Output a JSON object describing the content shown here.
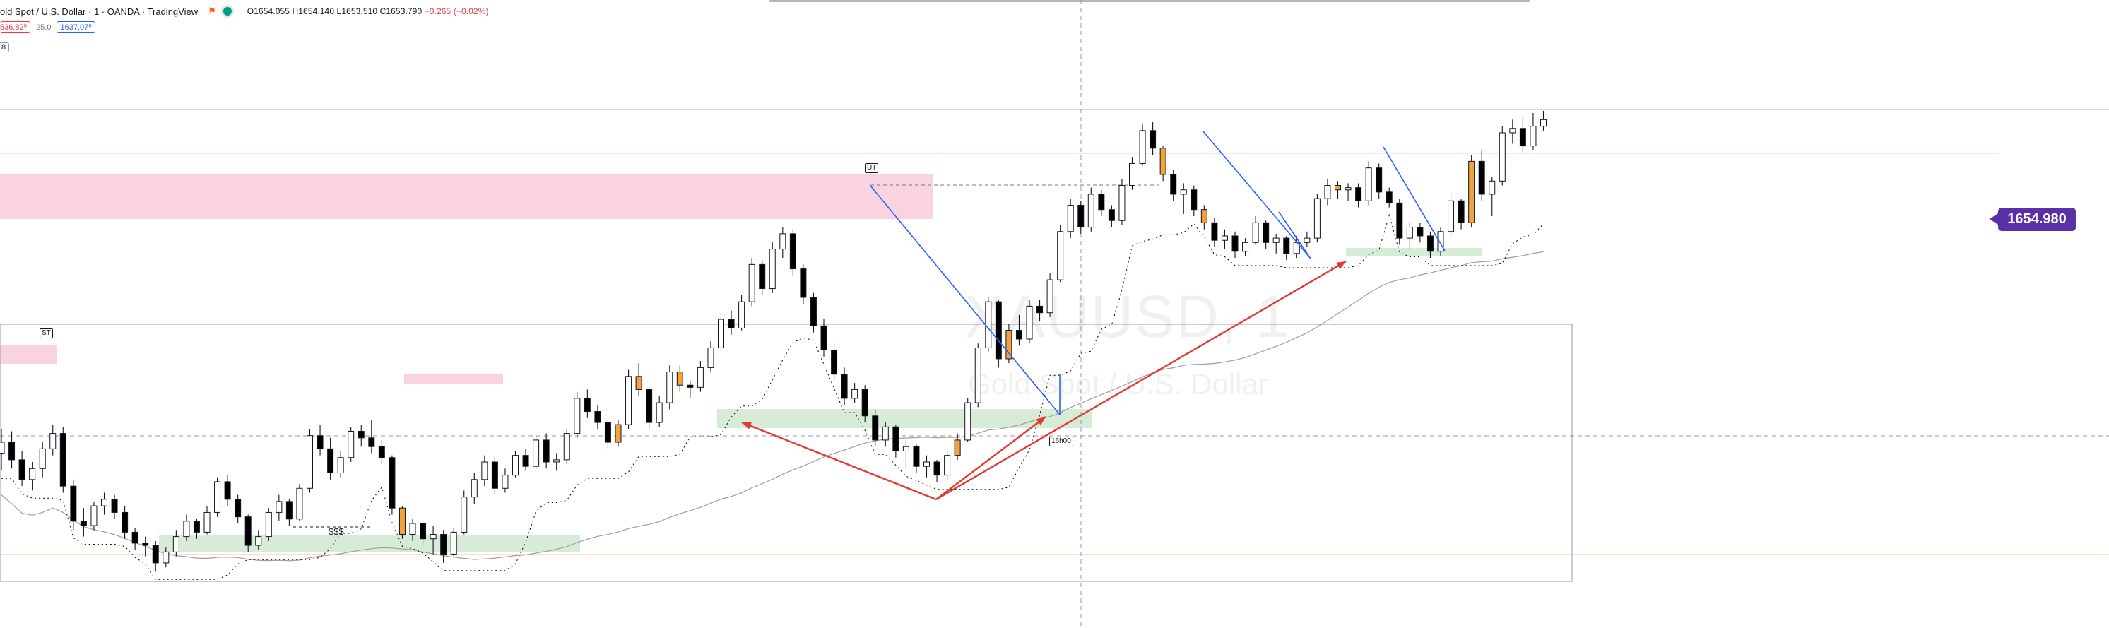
{
  "header": {
    "symbol": "old Spot / U.S. Dollar · 1 · OANDA · TradingView",
    "ohlc_o": "O1654.055",
    "ohlc_h": "H1654.140",
    "ohlc_l": "L1653.510",
    "ohlc_c": "C1653.790",
    "change": "−0.265 (−0.02%)"
  },
  "trade": {
    "sell": "536.82⁰",
    "spread": "25.0",
    "buy": "1637.07⁰"
  },
  "indicator_count": "8",
  "watermark": {
    "symbol": "XAUUSD, 1",
    "description": "Gold Spot / U.S. Dollar"
  },
  "price_tag": "1654.980",
  "annotations": {
    "st": "ST",
    "ut": "UT",
    "session": "16h00",
    "liquidity": "$$$"
  },
  "colors": {
    "up_candle": "#ffffff",
    "down_candle": "#000000",
    "inside_candle": "#f2a13c",
    "supply_zone": "#f8bbd0",
    "demand_zone": "#c8e6c9",
    "trend_line": "#2962ff",
    "arrow": "#e53935",
    "price_line": "#2962ff",
    "sma": "#9e9e9e",
    "trail_stop": "#000000"
  },
  "chart_data": {
    "type": "candlestick",
    "title": "",
    "y_range": [
      1636.2,
      1656.8
    ],
    "key_level": 1654.98,
    "candles": [
      [
        1641.3,
        1642.4,
        1640.5,
        1641.8
      ],
      [
        1641.8,
        1642.3,
        1640.6,
        1641.0
      ],
      [
        1641.0,
        1641.4,
        1639.8,
        1640.1
      ],
      [
        1640.1,
        1640.9,
        1639.6,
        1640.6
      ],
      [
        1640.6,
        1641.8,
        1640.2,
        1641.5
      ],
      [
        1641.5,
        1642.6,
        1641.2,
        1642.2
      ],
      [
        1642.2,
        1642.5,
        1639.5,
        1639.8
      ],
      [
        1639.8,
        1640.1,
        1637.8,
        1638.2
      ],
      [
        1638.2,
        1638.8,
        1637.5,
        1638.0
      ],
      [
        1638.0,
        1639.1,
        1637.8,
        1638.9
      ],
      [
        1638.9,
        1639.5,
        1638.5,
        1639.2
      ],
      [
        1639.2,
        1639.4,
        1638.3,
        1638.6
      ],
      [
        1638.6,
        1638.9,
        1637.4,
        1637.7
      ],
      [
        1637.7,
        1637.9,
        1636.9,
        1637.2
      ],
      [
        1637.2,
        1637.5,
        1636.6,
        1637.1
      ],
      [
        1637.1,
        1637.3,
        1635.9,
        1636.3
      ],
      [
        1636.3,
        1637.0,
        1636.1,
        1636.8
      ],
      [
        1636.8,
        1637.8,
        1636.6,
        1637.5
      ],
      [
        1637.5,
        1638.5,
        1637.3,
        1638.2
      ],
      [
        1638.2,
        1638.3,
        1637.4,
        1637.7
      ],
      [
        1637.7,
        1638.9,
        1637.6,
        1638.6
      ],
      [
        1638.6,
        1640.2,
        1638.4,
        1640.0
      ],
      [
        1640.0,
        1640.3,
        1638.9,
        1639.2
      ],
      [
        1639.2,
        1639.4,
        1638.1,
        1638.4
      ],
      [
        1638.4,
        1638.5,
        1636.8,
        1637.1
      ],
      [
        1637.1,
        1637.8,
        1636.9,
        1637.5
      ],
      [
        1637.5,
        1638.8,
        1637.3,
        1638.6
      ],
      [
        1638.6,
        1639.4,
        1638.2,
        1639.1
      ],
      [
        1639.1,
        1639.2,
        1638.0,
        1638.3
      ],
      [
        1638.3,
        1639.9,
        1638.2,
        1639.7
      ],
      [
        1639.7,
        1642.4,
        1639.5,
        1642.1
      ],
      [
        1642.1,
        1642.6,
        1641.2,
        1641.5
      ],
      [
        1641.5,
        1642.0,
        1640.1,
        1640.4
      ],
      [
        1640.4,
        1641.4,
        1640.2,
        1641.1
      ],
      [
        1641.1,
        1642.5,
        1640.9,
        1642.3
      ],
      [
        1642.3,
        1642.6,
        1641.6,
        1642.0
      ],
      [
        1642.0,
        1642.8,
        1641.3,
        1641.6
      ],
      [
        1641.6,
        1641.9,
        1640.8,
        1641.1
      ],
      [
        1641.1,
        1641.2,
        1638.5,
        1638.8
      ],
      [
        1638.8,
        1638.9,
        1637.4,
        1637.6
      ],
      [
        1637.6,
        1638.3,
        1637.3,
        1638.1
      ],
      [
        1638.1,
        1638.2,
        1637.1,
        1637.4
      ],
      [
        1637.4,
        1638.0,
        1636.7,
        1637.6
      ],
      [
        1637.6,
        1637.8,
        1636.3,
        1636.7
      ],
      [
        1636.7,
        1637.9,
        1636.6,
        1637.7
      ],
      [
        1637.7,
        1639.6,
        1637.6,
        1639.3
      ],
      [
        1639.3,
        1640.4,
        1639.0,
        1640.1
      ],
      [
        1640.1,
        1641.2,
        1639.8,
        1640.9
      ],
      [
        1640.9,
        1641.2,
        1639.4,
        1639.7
      ],
      [
        1639.7,
        1640.6,
        1639.5,
        1640.3
      ],
      [
        1640.3,
        1641.4,
        1640.2,
        1641.2
      ],
      [
        1641.2,
        1641.5,
        1640.5,
        1640.7
      ],
      [
        1640.7,
        1642.1,
        1640.6,
        1641.9
      ],
      [
        1641.9,
        1642.2,
        1640.6,
        1640.9
      ],
      [
        1640.9,
        1641.3,
        1640.5,
        1641.0
      ],
      [
        1641.0,
        1642.4,
        1640.8,
        1642.2
      ],
      [
        1642.2,
        1644.1,
        1642.0,
        1643.8
      ],
      [
        1643.8,
        1644.2,
        1642.9,
        1643.2
      ],
      [
        1643.2,
        1643.5,
        1642.4,
        1642.7
      ],
      [
        1642.7,
        1642.8,
        1641.5,
        1641.8
      ],
      [
        1641.8,
        1642.8,
        1641.6,
        1642.6
      ],
      [
        1642.6,
        1645.1,
        1642.4,
        1644.8
      ],
      [
        1644.8,
        1645.4,
        1643.9,
        1644.2
      ],
      [
        1644.2,
        1644.3,
        1642.4,
        1642.7
      ],
      [
        1642.7,
        1643.9,
        1642.5,
        1643.6
      ],
      [
        1643.6,
        1645.3,
        1643.3,
        1645.0
      ],
      [
        1645.0,
        1645.3,
        1644.1,
        1644.4
      ],
      [
        1644.4,
        1644.6,
        1643.8,
        1644.3
      ],
      [
        1644.3,
        1645.5,
        1644.1,
        1645.2
      ],
      [
        1645.2,
        1646.4,
        1645.0,
        1646.1
      ],
      [
        1646.1,
        1647.7,
        1645.9,
        1647.4
      ],
      [
        1647.4,
        1647.8,
        1646.7,
        1647.0
      ],
      [
        1647.0,
        1648.5,
        1646.9,
        1648.2
      ],
      [
        1648.2,
        1650.2,
        1648.0,
        1649.9
      ],
      [
        1649.9,
        1650.1,
        1648.5,
        1648.8
      ],
      [
        1648.8,
        1650.9,
        1648.6,
        1650.6
      ],
      [
        1650.6,
        1651.6,
        1650.2,
        1651.3
      ],
      [
        1651.3,
        1651.5,
        1649.4,
        1649.7
      ],
      [
        1649.7,
        1649.9,
        1648.1,
        1648.4
      ],
      [
        1648.4,
        1648.6,
        1646.8,
        1647.1
      ],
      [
        1647.1,
        1647.4,
        1645.7,
        1646.0
      ],
      [
        1646.0,
        1646.3,
        1644.6,
        1644.9
      ],
      [
        1644.9,
        1645.2,
        1643.5,
        1643.8
      ],
      [
        1643.8,
        1644.5,
        1643.6,
        1644.2
      ],
      [
        1644.2,
        1644.4,
        1642.7,
        1643.0
      ],
      [
        1643.0,
        1643.3,
        1641.6,
        1641.9
      ],
      [
        1641.9,
        1642.7,
        1641.6,
        1642.5
      ],
      [
        1642.5,
        1642.6,
        1641.1,
        1641.4
      ],
      [
        1641.4,
        1641.9,
        1640.6,
        1641.6
      ],
      [
        1641.6,
        1641.7,
        1640.4,
        1640.7
      ],
      [
        1640.7,
        1641.2,
        1640.2,
        1640.9
      ],
      [
        1640.9,
        1641.0,
        1640.0,
        1640.3
      ],
      [
        1640.3,
        1641.4,
        1640.1,
        1641.2
      ],
      [
        1641.2,
        1642.2,
        1641.0,
        1641.9
      ],
      [
        1641.9,
        1643.8,
        1641.8,
        1643.6
      ],
      [
        1643.6,
        1646.3,
        1643.4,
        1646.1
      ],
      [
        1646.1,
        1648.4,
        1645.9,
        1648.2
      ],
      [
        1648.2,
        1648.3,
        1645.2,
        1645.6
      ],
      [
        1645.6,
        1647.2,
        1645.4,
        1646.9
      ],
      [
        1646.9,
        1647.6,
        1646.2,
        1646.5
      ],
      [
        1646.5,
        1648.3,
        1646.3,
        1648.0
      ],
      [
        1648.0,
        1648.3,
        1647.3,
        1647.7
      ],
      [
        1647.7,
        1649.5,
        1647.5,
        1649.2
      ],
      [
        1649.2,
        1651.7,
        1649.1,
        1651.4
      ],
      [
        1651.4,
        1652.9,
        1651.1,
        1652.6
      ],
      [
        1652.6,
        1652.8,
        1651.3,
        1651.6
      ],
      [
        1651.6,
        1653.4,
        1651.4,
        1653.1
      ],
      [
        1653.1,
        1653.3,
        1652.1,
        1652.4
      ],
      [
        1652.4,
        1652.6,
        1651.6,
        1651.9
      ],
      [
        1651.9,
        1653.8,
        1651.7,
        1653.5
      ],
      [
        1653.5,
        1654.8,
        1653.3,
        1654.5
      ],
      [
        1654.5,
        1656.3,
        1654.4,
        1656.0
      ],
      [
        1656.0,
        1656.4,
        1654.9,
        1655.2
      ],
      [
        1655.2,
        1655.3,
        1653.7,
        1654.0
      ],
      [
        1654.0,
        1654.2,
        1652.8,
        1653.1
      ],
      [
        1653.1,
        1653.6,
        1652.2,
        1653.3
      ],
      [
        1653.3,
        1653.5,
        1652.1,
        1652.4
      ],
      [
        1652.4,
        1652.6,
        1651.5,
        1651.8
      ],
      [
        1651.8,
        1652.0,
        1650.7,
        1651.0
      ],
      [
        1651.0,
        1651.5,
        1650.6,
        1651.2
      ],
      [
        1651.2,
        1651.4,
        1650.2,
        1650.5
      ],
      [
        1650.5,
        1651.1,
        1650.3,
        1650.9
      ],
      [
        1650.9,
        1652.1,
        1650.8,
        1651.8
      ],
      [
        1651.8,
        1651.9,
        1650.6,
        1650.9
      ],
      [
        1650.9,
        1651.3,
        1650.4,
        1651.1
      ],
      [
        1651.1,
        1651.2,
        1650.1,
        1650.4
      ],
      [
        1650.4,
        1651.2,
        1650.2,
        1650.9
      ],
      [
        1650.9,
        1651.4,
        1650.7,
        1651.1
      ],
      [
        1651.1,
        1653.1,
        1650.9,
        1652.9
      ],
      [
        1652.9,
        1653.8,
        1652.6,
        1653.5
      ],
      [
        1653.5,
        1653.7,
        1652.9,
        1653.3
      ],
      [
        1653.3,
        1653.6,
        1652.8,
        1653.4
      ],
      [
        1653.4,
        1653.6,
        1652.5,
        1652.8
      ],
      [
        1652.8,
        1654.6,
        1652.6,
        1654.3
      ],
      [
        1654.3,
        1654.5,
        1652.9,
        1653.2
      ],
      [
        1653.2,
        1653.4,
        1652.5,
        1652.7
      ],
      [
        1652.7,
        1652.9,
        1650.8,
        1651.1
      ],
      [
        1651.1,
        1651.8,
        1650.6,
        1651.6
      ],
      [
        1651.6,
        1651.8,
        1650.9,
        1651.2
      ],
      [
        1651.2,
        1651.4,
        1650.2,
        1650.5
      ],
      [
        1650.5,
        1651.6,
        1650.3,
        1651.4
      ],
      [
        1651.4,
        1653.1,
        1651.2,
        1652.8
      ],
      [
        1652.8,
        1652.9,
        1651.5,
        1651.8
      ],
      [
        1651.8,
        1654.9,
        1651.6,
        1654.6
      ],
      [
        1654.6,
        1655.1,
        1652.8,
        1653.1
      ],
      [
        1653.1,
        1653.9,
        1652.1,
        1653.7
      ],
      [
        1653.7,
        1656.2,
        1653.5,
        1655.9
      ],
      [
        1655.9,
        1656.5,
        1655.4,
        1656.1
      ],
      [
        1656.1,
        1656.6,
        1655.0,
        1655.3
      ],
      [
        1655.3,
        1656.8,
        1655.1,
        1656.2
      ],
      [
        1656.2,
        1656.9,
        1656.0,
        1656.5
      ]
    ],
    "candle_tags": {
      "inside": [
        39,
        60,
        62,
        66,
        93,
        98,
        113,
        117,
        130,
        143
      ]
    }
  }
}
